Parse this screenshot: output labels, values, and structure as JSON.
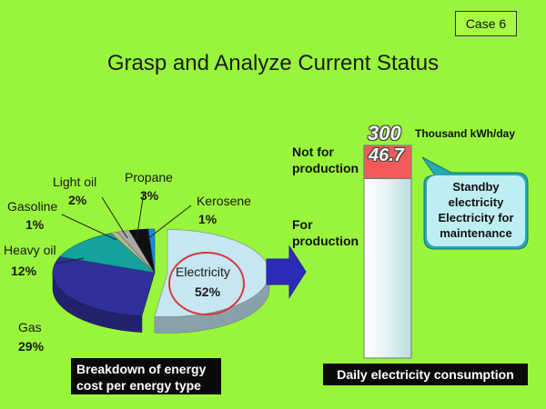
{
  "case_label": "Case 6",
  "title": "Grasp and Analyze Current Status",
  "chart_data": [
    {
      "type": "pie",
      "title": "Breakdown of energy cost per energy type",
      "title_lines": [
        "Breakdown of energy",
        "cost per energy type"
      ],
      "slices": [
        {
          "label": "Electricity",
          "value": 52,
          "display": "52%",
          "color": "#c6e6f2",
          "exploded": true,
          "highlighted": true
        },
        {
          "label": "Gas",
          "value": 29,
          "display": "29%",
          "color": "#30309a"
        },
        {
          "label": "Heavy oil",
          "value": 12,
          "display": "12%",
          "color": "#15a39f"
        },
        {
          "label": "Gasoline",
          "value": 1,
          "display": "1%",
          "color": "#b7bd83"
        },
        {
          "label": "Light oil",
          "value": 2,
          "display": "2%",
          "color": "#a9a9a9"
        },
        {
          "label": "Propane",
          "value": 3,
          "display": "3%",
          "color": "#101010"
        },
        {
          "label": "Kerosene",
          "value": 1,
          "display": "1%",
          "color": "#1e87e6"
        }
      ]
    },
    {
      "type": "bar",
      "title": "Daily electricity consumption",
      "total": 300,
      "total_display": "300",
      "unit": "Thousand kWh/day",
      "ylim": [
        0,
        300
      ],
      "segments": [
        {
          "name": "For production",
          "name_lines": [
            "For",
            "production"
          ],
          "value": 253.3,
          "color": "#e3f3f4"
        },
        {
          "name": "Not for production",
          "name_lines": [
            "Not for",
            "production"
          ],
          "value": 46.7,
          "display": "46.7",
          "color": "#f25a5a"
        }
      ],
      "callout_lines": [
        "Standby",
        "electricity",
        "Electricity for",
        "maintenance"
      ]
    }
  ]
}
